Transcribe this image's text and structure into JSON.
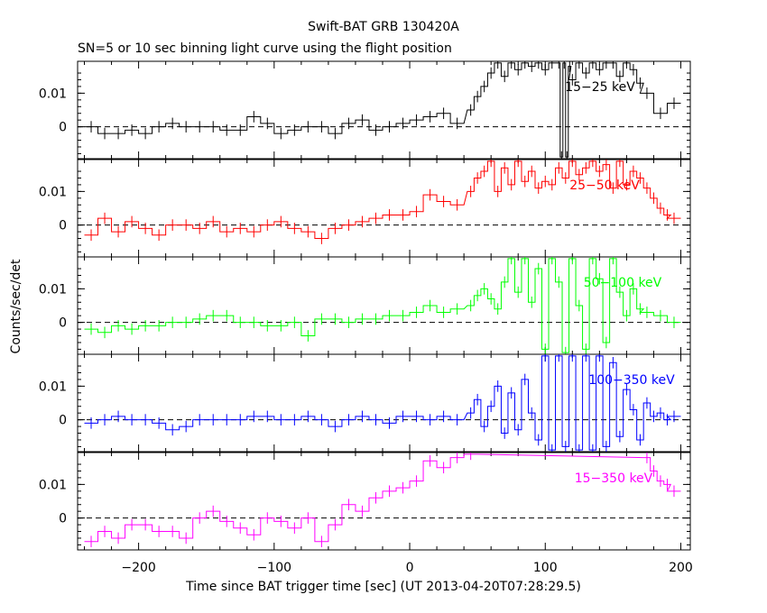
{
  "title": "Swift-BAT GRB 130420A",
  "subtitle": "SN=5 or 10 sec binning light curve using the flight position",
  "xlabel": "Time since BAT trigger time [sec] (UT 2013-04-20T07:28:29.5)",
  "ylabel": "Counts/sec/det",
  "colors": {
    "black": "#000000",
    "red": "#ff0000",
    "green": "#00ff00",
    "blue": "#0000ff",
    "magenta": "#ff00ff"
  },
  "chart_data": {
    "type": "line",
    "xlim": [
      -245,
      207
    ],
    "ylim": [
      -0.0095,
      0.0195
    ],
    "x_ticks": [
      -200,
      -100,
      0,
      100,
      200
    ],
    "y_ticks": [
      0,
      0.01
    ],
    "y_tick_labels": [
      "0",
      "0.01"
    ],
    "x_tick_labels": [
      "−200",
      "−100",
      "0",
      "100",
      "200"
    ],
    "series": [
      {
        "name": "15−25 keV",
        "color": "#000000",
        "x": [
          -235,
          -225,
          -215,
          -205,
          -195,
          -185,
          -175,
          -165,
          -155,
          -145,
          -135,
          -125,
          -115,
          -105,
          -95,
          -85,
          -75,
          -65,
          -55,
          -45,
          -35,
          -25,
          -15,
          -5,
          5,
          15,
          25,
          35,
          45,
          50,
          55,
          60,
          65,
          70,
          75,
          80,
          85,
          90,
          95,
          100,
          105,
          110,
          112,
          114,
          116,
          118,
          120,
          125,
          130,
          135,
          140,
          145,
          150,
          155,
          160,
          165,
          170,
          175,
          185,
          195
        ],
        "y": [
          0,
          -0.002,
          -0.002,
          -0.001,
          -0.002,
          0,
          0.001,
          0,
          0,
          0,
          -0.001,
          -0.001,
          0.003,
          0.001,
          -0.002,
          -0.001,
          0,
          0,
          -0.002,
          0.001,
          0.002,
          -0.001,
          0,
          0.001,
          0.002,
          0.003,
          0.004,
          0.001,
          0.005,
          0.009,
          0.012,
          0.016,
          0.019,
          0.015,
          0.019,
          0.017,
          0.019,
          0.018,
          0.019,
          0.017,
          0.019,
          0.019,
          -0.009,
          0.019,
          -0.009,
          0.018,
          0.014,
          0.019,
          0.016,
          0.019,
          0.017,
          0.019,
          0.019,
          0.015,
          0.019,
          0.017,
          0.013,
          0.01,
          0.004,
          0.007
        ]
      },
      {
        "name": "25−50 keV",
        "color": "#ff0000",
        "x": [
          -235,
          -225,
          -215,
          -205,
          -195,
          -185,
          -175,
          -165,
          -155,
          -145,
          -135,
          -125,
          -115,
          -105,
          -95,
          -85,
          -75,
          -65,
          -55,
          -45,
          -35,
          -25,
          -15,
          -5,
          5,
          15,
          25,
          35,
          45,
          50,
          55,
          60,
          65,
          70,
          75,
          80,
          85,
          90,
          95,
          100,
          105,
          110,
          115,
          120,
          125,
          130,
          135,
          140,
          145,
          150,
          155,
          160,
          165,
          170,
          175,
          180,
          185,
          190,
          195
        ],
        "y": [
          -0.003,
          0.002,
          -0.002,
          0.001,
          -0.001,
          -0.003,
          0,
          0,
          -0.001,
          0.001,
          -0.002,
          -0.001,
          -0.002,
          0,
          0.001,
          -0.001,
          -0.002,
          -0.004,
          -0.001,
          0,
          0.001,
          0.002,
          0.003,
          0.003,
          0.004,
          0.009,
          0.007,
          0.006,
          0.01,
          0.014,
          0.016,
          0.019,
          0.01,
          0.017,
          0.012,
          0.019,
          0.013,
          0.016,
          0.011,
          0.013,
          0.012,
          0.017,
          0.014,
          0.019,
          0.015,
          0.017,
          0.019,
          0.016,
          0.018,
          0.011,
          0.019,
          0.012,
          0.016,
          0.014,
          0.011,
          0.008,
          0.005,
          0.003,
          0.002
        ]
      },
      {
        "name": "50−100 keV",
        "color": "#00ff00",
        "x": [
          -235,
          -225,
          -215,
          -205,
          -195,
          -185,
          -175,
          -165,
          -155,
          -145,
          -135,
          -125,
          -115,
          -105,
          -95,
          -85,
          -75,
          -65,
          -55,
          -45,
          -35,
          -25,
          -15,
          -5,
          5,
          15,
          25,
          35,
          45,
          50,
          55,
          60,
          65,
          70,
          75,
          80,
          85,
          90,
          95,
          100,
          105,
          110,
          115,
          120,
          125,
          130,
          135,
          140,
          145,
          150,
          155,
          160,
          165,
          170,
          175,
          185,
          195
        ],
        "y": [
          -0.002,
          -0.003,
          -0.001,
          -0.002,
          -0.001,
          -0.001,
          0,
          0,
          0.001,
          0.002,
          0.002,
          0,
          0,
          -0.001,
          -0.001,
          0,
          -0.004,
          0.001,
          0.001,
          0,
          0.001,
          0.001,
          0.002,
          0.002,
          0.003,
          0.005,
          0.003,
          0.004,
          0.005,
          0.008,
          0.01,
          0.007,
          0.004,
          0.012,
          0.019,
          0.009,
          0.019,
          0.006,
          0.016,
          -0.008,
          0.019,
          0.012,
          -0.009,
          0.019,
          0.005,
          -0.008,
          0.019,
          0.013,
          -0.006,
          0.019,
          0.009,
          0.002,
          0.01,
          0.004,
          0.003,
          0.002,
          0
        ]
      },
      {
        "name": "100−350 keV",
        "color": "#0000ff",
        "x": [
          -235,
          -225,
          -215,
          -205,
          -195,
          -185,
          -175,
          -165,
          -155,
          -145,
          -135,
          -125,
          -115,
          -105,
          -95,
          -85,
          -75,
          -65,
          -55,
          -45,
          -35,
          -25,
          -15,
          -5,
          5,
          15,
          25,
          35,
          45,
          50,
          55,
          60,
          65,
          70,
          75,
          80,
          85,
          90,
          95,
          100,
          105,
          110,
          115,
          120,
          125,
          130,
          135,
          140,
          145,
          150,
          155,
          160,
          165,
          170,
          175,
          180,
          185,
          190,
          195
        ],
        "y": [
          -0.001,
          0,
          0.001,
          0,
          0,
          -0.001,
          -0.003,
          -0.002,
          0,
          0,
          0,
          0,
          0.001,
          0.001,
          0,
          0,
          0.001,
          0,
          -0.002,
          0,
          0.001,
          0,
          -0.001,
          0.001,
          0.001,
          0,
          0.001,
          0,
          0.002,
          0.006,
          -0.002,
          0.004,
          0.01,
          -0.004,
          0.008,
          -0.003,
          0.012,
          0.002,
          -0.006,
          0.019,
          -0.009,
          0.019,
          -0.008,
          0.019,
          -0.009,
          0.019,
          -0.009,
          0.019,
          -0.008,
          0.017,
          -0.005,
          0.009,
          0.003,
          -0.006,
          0.005,
          0.001,
          0.002,
          0,
          0.001
        ]
      },
      {
        "name": "15−350 keV",
        "color": "#ff00ff",
        "x": [
          -235,
          -225,
          -215,
          -205,
          -195,
          -185,
          -175,
          -165,
          -155,
          -145,
          -135,
          -125,
          -115,
          -105,
          -95,
          -85,
          -75,
          -65,
          -55,
          -45,
          -35,
          -25,
          -15,
          -5,
          5,
          15,
          25,
          35,
          45,
          175,
          180,
          185,
          190,
          195
        ],
        "y": [
          -0.007,
          -0.004,
          -0.006,
          -0.002,
          -0.002,
          -0.004,
          -0.004,
          -0.006,
          0,
          0.002,
          -0.001,
          -0.003,
          -0.005,
          0,
          -0.001,
          -0.003,
          0,
          -0.007,
          -0.002,
          0.004,
          0.002,
          0.006,
          0.008,
          0.009,
          0.011,
          0.017,
          0.015,
          0.018,
          0.019,
          0.018,
          0.014,
          0.011,
          0.01,
          0.008
        ]
      }
    ]
  }
}
